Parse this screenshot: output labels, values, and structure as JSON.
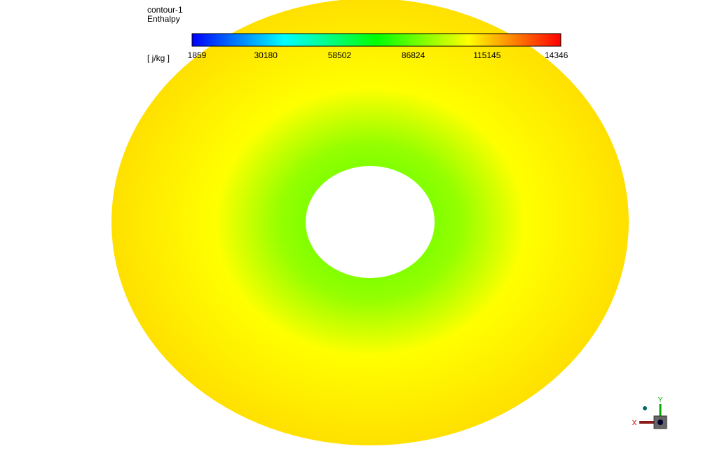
{
  "legend": {
    "title": "contour-1",
    "variable": "Enthalpy",
    "unit": "[ j/kg ]",
    "labels": [
      "1859",
      "30180",
      "58502",
      "86824",
      "115145",
      "14346"
    ]
  },
  "triad": {
    "x": "X",
    "y": "Y"
  }
}
